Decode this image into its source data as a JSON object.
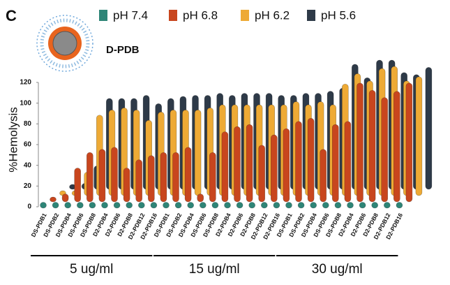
{
  "chart_data": {
    "type": "bar3d",
    "panel_label": "C",
    "annotation": "D-PDB",
    "ylabel": "%Hemolysis",
    "categories": [
      "DS-PDB1",
      "DS-PDB2",
      "DS-PDB4",
      "DS-PDB6",
      "DS-PDB8",
      "D2-PDB4",
      "D2-PDB6",
      "D2-PDB8",
      "D2-PDB12",
      "D2-PDB16",
      "DS-PDB1",
      "DS-PDB2",
      "DS-PDB4",
      "DS-PDB6",
      "DS-PDB8",
      "D2-PDB4",
      "D2-PDB6",
      "D2-PDB8",
      "D2-PDB12",
      "D2-PDB16",
      "DS-PDB1",
      "DS-PDB2",
      "DS-PDB4",
      "DS-PDB6",
      "DS-PDB8",
      "D2-PDB4",
      "D2-PDB6",
      "D2-PDB8",
      "D2-PDB12",
      "D2-PDB16"
    ],
    "group_labels": [
      "5 ug/ml",
      "15 ug/ml",
      "30 ug/ml"
    ],
    "series": [
      {
        "name": "pH 7.4",
        "color": "#2e8577",
        "values": [
          3,
          3,
          3,
          3,
          3,
          3,
          3,
          3,
          3,
          3,
          3,
          3,
          3,
          3,
          3,
          3,
          3,
          3,
          3,
          3,
          3,
          3,
          3,
          3,
          3,
          3,
          3,
          3,
          3,
          3
        ]
      },
      {
        "name": "pH 6.8",
        "color": "#c8461e",
        "values": [
          2,
          5,
          30,
          45,
          48,
          50,
          30,
          38,
          42,
          45,
          45,
          50,
          5,
          45,
          65,
          70,
          72,
          52,
          62,
          68,
          75,
          78,
          48,
          72,
          75,
          112,
          105,
          98,
          104,
          112
        ]
      },
      {
        "name": "pH 6.2",
        "color": "#eeaa35",
        "values": [
          2,
          2,
          20,
          75,
          80,
          82,
          80,
          70,
          78,
          80,
          80,
          80,
          82,
          85,
          85,
          85,
          85,
          85,
          85,
          88,
          85,
          88,
          85,
          105,
          115,
          108,
          120,
          122,
          108,
          112
        ]
      },
      {
        "name": "pH 5.6",
        "color": "#2e3a48",
        "values": [
          2,
          3,
          20,
          85,
          85,
          85,
          88,
          80,
          85,
          87,
          88,
          88,
          90,
          88,
          90,
          90,
          90,
          88,
          88,
          90,
          90,
          92,
          95,
          118,
          105,
          122,
          122,
          110,
          108,
          115
        ]
      }
    ],
    "ylim": [
      0,
      120
    ],
    "yticks": [
      0,
      20,
      40,
      60,
      80,
      100,
      120
    ]
  }
}
